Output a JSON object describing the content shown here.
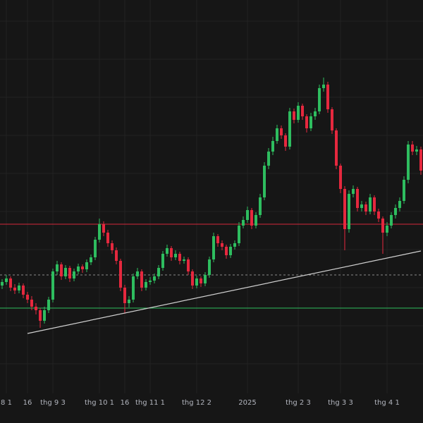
{
  "chart_data": {
    "type": "candlestick",
    "categories": [
      null,
      "8 1",
      null,
      null,
      null,
      null,
      "16",
      null,
      null,
      null,
      null,
      null,
      "thg 9 3",
      null,
      null,
      null,
      null,
      null,
      null,
      null,
      null,
      null,
      null,
      "thg 10 1",
      null,
      null,
      null,
      null,
      null,
      "16",
      null,
      null,
      null,
      null,
      null,
      "thg 11 1",
      null,
      null,
      null,
      null,
      null,
      null,
      null,
      null,
      null,
      null,
      "thg 12 2",
      null,
      null,
      null,
      null,
      null,
      null,
      null,
      null,
      null,
      null,
      null,
      "2025",
      null,
      null,
      null,
      null,
      null,
      null,
      null,
      null,
      null,
      null,
      null,
      "thg 2 3",
      null,
      null,
      null,
      null,
      null,
      null,
      null,
      null,
      null,
      "thg 3 3",
      null,
      null,
      null,
      null,
      null,
      null,
      null,
      null,
      null,
      null,
      "thg 4 1",
      null,
      null,
      null,
      null,
      null,
      null,
      null,
      null
    ],
    "open": [
      195,
      200,
      205,
      192,
      188,
      195,
      182,
      175,
      165,
      160,
      145,
      160,
      175,
      215,
      225,
      208,
      220,
      205,
      215,
      222,
      218,
      228,
      235,
      260,
      282,
      270,
      255,
      245,
      230,
      192,
      170,
      175,
      208,
      215,
      192,
      200,
      202,
      208,
      220,
      240,
      248,
      235,
      240,
      230,
      232,
      215,
      195,
      205,
      198,
      210,
      232,
      265,
      255,
      250,
      238,
      250,
      255,
      280,
      288,
      302,
      280,
      295,
      320,
      365,
      385,
      400,
      418,
      408,
      392,
      442,
      430,
      450,
      435,
      418,
      435,
      442,
      475,
      480,
      445,
      415,
      365,
      332,
      275,
      325,
      332,
      305,
      310,
      300,
      320,
      300,
      290,
      270,
      280,
      295,
      305,
      315,
      345,
      395,
      385,
      388
    ],
    "high": [
      204,
      210,
      208,
      197,
      199,
      198,
      186,
      180,
      170,
      163,
      165,
      179,
      219,
      230,
      228,
      224,
      223,
      219,
      226,
      225,
      232,
      239,
      264,
      290,
      286,
      274,
      259,
      249,
      233,
      196,
      180,
      212,
      220,
      218,
      204,
      207,
      212,
      224,
      244,
      253,
      251,
      245,
      243,
      236,
      235,
      218,
      209,
      208,
      214,
      236,
      270,
      268,
      259,
      253,
      254,
      259,
      285,
      293,
      307,
      305,
      299,
      325,
      370,
      390,
      406,
      423,
      422,
      411,
      447,
      446,
      455,
      453,
      438,
      440,
      447,
      480,
      490,
      484,
      448,
      418,
      368,
      336,
      330,
      337,
      335,
      315,
      314,
      325,
      323,
      304,
      293,
      285,
      299,
      310,
      320,
      350,
      400,
      400,
      393,
      392
    ],
    "low": [
      190,
      196,
      187,
      183,
      184,
      177,
      170,
      160,
      154,
      135,
      141,
      156,
      171,
      210,
      203,
      204,
      200,
      201,
      211,
      213,
      214,
      224,
      231,
      256,
      265,
      250,
      240,
      225,
      187,
      155,
      164,
      171,
      204,
      187,
      188,
      196,
      198,
      204,
      216,
      236,
      230,
      231,
      225,
      226,
      210,
      190,
      191,
      193,
      194,
      206,
      228,
      250,
      245,
      233,
      234,
      246,
      251,
      276,
      284,
      275,
      276,
      291,
      316,
      360,
      380,
      396,
      403,
      386,
      388,
      425,
      426,
      430,
      412,
      414,
      430,
      438,
      470,
      440,
      410,
      360,
      326,
      245,
      270,
      320,
      300,
      300,
      295,
      296,
      295,
      285,
      240,
      265,
      276,
      290,
      300,
      311,
      340,
      380,
      380,
      352
    ],
    "close": [
      200,
      205,
      192,
      188,
      195,
      182,
      175,
      165,
      160,
      145,
      160,
      175,
      215,
      225,
      208,
      220,
      205,
      215,
      222,
      218,
      228,
      235,
      260,
      282,
      270,
      255,
      245,
      230,
      192,
      170,
      175,
      208,
      215,
      192,
      200,
      202,
      208,
      220,
      240,
      248,
      235,
      240,
      230,
      232,
      215,
      195,
      205,
      198,
      210,
      232,
      265,
      255,
      250,
      238,
      250,
      255,
      280,
      288,
      302,
      280,
      295,
      320,
      365,
      385,
      400,
      418,
      408,
      392,
      442,
      430,
      450,
      435,
      418,
      435,
      442,
      475,
      480,
      445,
      415,
      365,
      332,
      275,
      325,
      332,
      305,
      310,
      300,
      320,
      300,
      290,
      270,
      280,
      295,
      305,
      315,
      345,
      395,
      385,
      388,
      358
    ],
    "up_color": "#2ebd5f",
    "down_color": "#e5283e",
    "ylim": [
      0,
      600
    ],
    "hlines": [
      {
        "value": 282,
        "color": "#d4283a",
        "style": "solid"
      },
      {
        "value": 210,
        "color": "#8a8a8a",
        "style": "dashed"
      },
      {
        "value": 163,
        "color": "#2ebd5f",
        "style": "solid"
      }
    ],
    "trendline": {
      "start": {
        "index": 6,
        "value": 127
      },
      "end": {
        "index": 99,
        "value": 244
      },
      "color": "#d0d0d0"
    },
    "grid": true
  }
}
